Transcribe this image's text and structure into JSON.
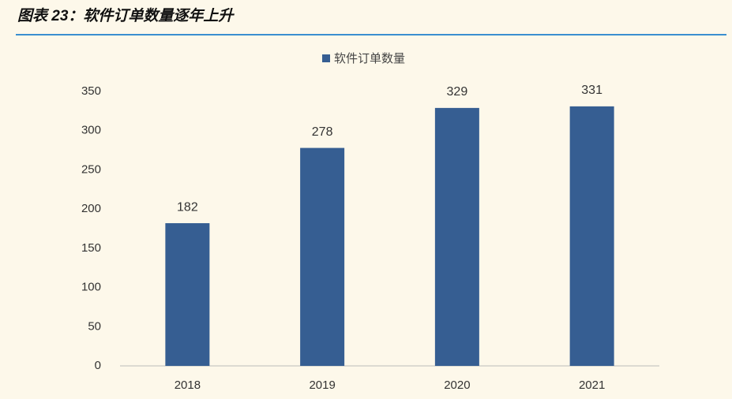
{
  "chart_data": {
    "type": "bar",
    "title": "图表 23：软件订单数量逐年上升",
    "categories": [
      "2018",
      "2019",
      "2020",
      "2021"
    ],
    "series": [
      {
        "name": "软件订单数量",
        "color": "#365e92",
        "values": [
          182,
          278,
          329,
          331
        ]
      }
    ],
    "ylim": [
      0,
      350
    ],
    "yticks": [
      0,
      50,
      100,
      150,
      200,
      250,
      300,
      350
    ],
    "grid": false,
    "legend": "top"
  }
}
